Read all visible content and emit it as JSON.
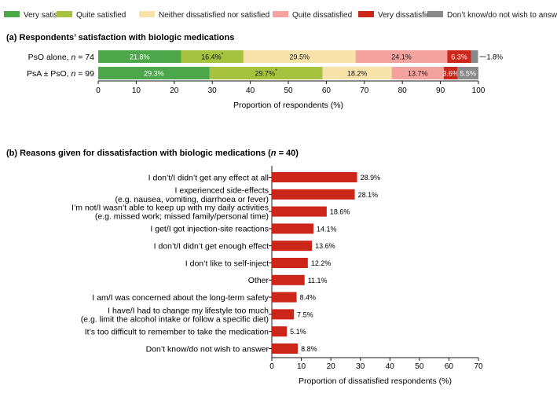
{
  "chart_data": [
    {
      "type": "bar",
      "orientation": "horizontal-stacked",
      "title": "(a) Respondents’ satisfaction with biologic medications",
      "xlabel": "Proportion of respondents (%)",
      "xlim": [
        0,
        100
      ],
      "xticks": [
        "0",
        "10",
        "20",
        "30",
        "40",
        "50",
        "60",
        "70",
        "80",
        "90",
        "100"
      ],
      "legend_position": "top",
      "categories": [
        "PsO alone, n = 74",
        "PsA ± PsO, n = 99"
      ],
      "series": [
        {
          "name": "Very satisfied",
          "color": "#4ca64a",
          "values": [
            21.8,
            29.3
          ],
          "labels": [
            "21.8%",
            "29.3%"
          ]
        },
        {
          "name": "Quite satisfied",
          "color": "#a7c23f",
          "values": [
            16.4,
            29.7
          ],
          "labels": [
            "16.4%*",
            "29.7%*"
          ]
        },
        {
          "name": "Neither dissatisfied nor satisfied",
          "color": "#f7e2a9",
          "values": [
            29.5,
            18.2
          ],
          "labels": [
            "29.5%",
            "18.2%"
          ]
        },
        {
          "name": "Quite dissatisfied",
          "color": "#f3a29d",
          "values": [
            24.1,
            13.7
          ],
          "labels": [
            "24.1%",
            "13.7%"
          ]
        },
        {
          "name": "Very dissatisfied",
          "color": "#cc2519",
          "values": [
            6.3,
            3.6
          ],
          "labels": [
            "6.3%",
            "3.6%"
          ]
        },
        {
          "name": "Don’t know/do not wish to answer",
          "color": "#8a8a8a",
          "values": [
            1.8,
            5.5
          ],
          "labels": [
            "1.8%",
            "5.5%"
          ]
        }
      ]
    },
    {
      "type": "bar",
      "orientation": "horizontal",
      "title": "(b) Reasons given for dissatisfaction with biologic medications (n = 40)",
      "xlabel": "Proportion of dissatisfied respondents (%)",
      "xlim": [
        0,
        70
      ],
      "xticks": [
        "0",
        "10",
        "20",
        "30",
        "40",
        "50",
        "60",
        "70"
      ],
      "color": "#cc2519",
      "categories": [
        [
          "I don’t/I didn’t get any effect at all"
        ],
        [
          "I experienced side-effects",
          "(e.g. nausea, vomiting, diarrhoea or fever)"
        ],
        [
          "I’m not/I wasn’t able to keep up with my daily activities",
          "(e.g. missed work; missed family/personal time)"
        ],
        [
          "I get/I got injection-site reactions"
        ],
        [
          "I don’t/I didn’t get enough effect"
        ],
        [
          "I don’t like to self-inject"
        ],
        [
          "Other"
        ],
        [
          "I am/I was concerned about the long-term safety"
        ],
        [
          "I have/I had to change my lifestyle too much",
          "(e.g. limit the alcohol intake or follow a specific diet)"
        ],
        [
          "It’s too difficult to remember to take the medication"
        ],
        [
          "Don’t know/do not wish to answer"
        ]
      ],
      "values": [
        28.9,
        28.1,
        18.6,
        14.1,
        13.6,
        12.2,
        11.1,
        8.4,
        7.5,
        5.1,
        8.8
      ],
      "labels": [
        "28.9%",
        "28.1%",
        "18.6%",
        "14.1%",
        "13.6%",
        "12.2%",
        "11.1%",
        "8.4%",
        "7.5%",
        "5.1%",
        "8.8%"
      ]
    }
  ]
}
